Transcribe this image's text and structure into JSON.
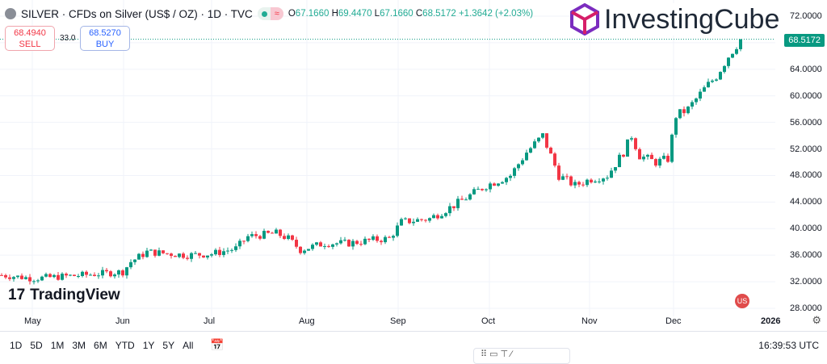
{
  "header": {
    "title": "SILVER · CFDs on Silver (US$ / OZ) · 1D · TVC",
    "open_label": "O",
    "open": "67.1660",
    "high_label": "H",
    "high": "69.4470",
    "low_label": "L",
    "low": "67.1660",
    "close_label": "C",
    "close": "68.5172",
    "change": "+1.3642 (+2.03%)",
    "wave_icon": "≈"
  },
  "trade": {
    "sell_price": "68.4940",
    "sell_label": "SELL",
    "spread": "33.0",
    "buy_price": "68.5270",
    "buy_label": "BUY"
  },
  "brand": {
    "logo_text": "InvestingCube",
    "tv_text": "TradingView",
    "tv_mark": "17"
  },
  "last_price": "68.5172",
  "colors": {
    "up": "#089981",
    "down": "#f23645",
    "grid": "#f0f3fa"
  },
  "chart_data": {
    "type": "candlestick",
    "title": "SILVER · CFDs on Silver (US$ / OZ) · 1D · TVC",
    "ylim": [
      28,
      72
    ],
    "y_ticks": [
      "72.0000",
      "68.0000",
      "64.0000",
      "60.0000",
      "56.0000",
      "52.0000",
      "48.0000",
      "44.0000",
      "40.0000",
      "36.0000",
      "32.0000",
      "28.0000"
    ],
    "x_ticks": [
      "May",
      "Jun",
      "Jul",
      "Aug",
      "Sep",
      "Oct",
      "Nov",
      "Dec",
      "2026"
    ],
    "close_anchors": [
      [
        0,
        33.0
      ],
      [
        8,
        32.5
      ],
      [
        20,
        33.0
      ],
      [
        30,
        33.5
      ],
      [
        32,
        35
      ],
      [
        36,
        36.5
      ],
      [
        40,
        36.3
      ],
      [
        46,
        36.0
      ],
      [
        52,
        36.2
      ],
      [
        58,
        37
      ],
      [
        61,
        38.8
      ],
      [
        68,
        39.3
      ],
      [
        71,
        38.5
      ],
      [
        74,
        36.8
      ],
      [
        80,
        37.8
      ],
      [
        86,
        37.8
      ],
      [
        92,
        38.3
      ],
      [
        96,
        38.5
      ],
      [
        99,
        41
      ],
      [
        106,
        41.5
      ],
      [
        112,
        43.5
      ],
      [
        120,
        46.5
      ],
      [
        126,
        48
      ],
      [
        130,
        51.5
      ],
      [
        134,
        54
      ],
      [
        136,
        51
      ],
      [
        138,
        48
      ],
      [
        142,
        46.5
      ],
      [
        146,
        47.5
      ],
      [
        150,
        48
      ],
      [
        154,
        51.5
      ],
      [
        156,
        54
      ],
      [
        158,
        51
      ],
      [
        162,
        50
      ],
      [
        165,
        50.5
      ],
      [
        167,
        57
      ],
      [
        170,
        58
      ],
      [
        174,
        61
      ],
      [
        177,
        63
      ],
      [
        180,
        66
      ],
      [
        183,
        68.5
      ]
    ]
  },
  "bottom": {
    "ranges": [
      "1D",
      "5D",
      "1M",
      "3M",
      "6M",
      "YTD",
      "1Y",
      "5Y",
      "All"
    ],
    "time": "16:39:53 UTC"
  }
}
